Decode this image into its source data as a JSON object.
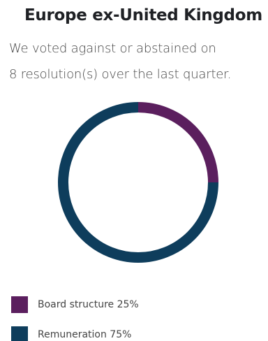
{
  "header": {
    "title": "Europe ex-United Kingdom",
    "subtitle_line1": "We voted against or abstained on",
    "subtitle_line2": "8 resolution(s) over the last quarter."
  },
  "chart_data": {
    "type": "pie",
    "style": "donut",
    "categories": [
      "Board structure",
      "Remuneration"
    ],
    "values": [
      25,
      75
    ],
    "unit": "%",
    "colors": [
      "#5b1f5e",
      "#0e3d5c"
    ],
    "legend_position": "bottom-left"
  },
  "legend": {
    "items": [
      {
        "label": "Board structure 25%",
        "color": "#5b1f5e"
      },
      {
        "label": "Remuneration 75%",
        "color": "#0e3d5c"
      }
    ]
  }
}
